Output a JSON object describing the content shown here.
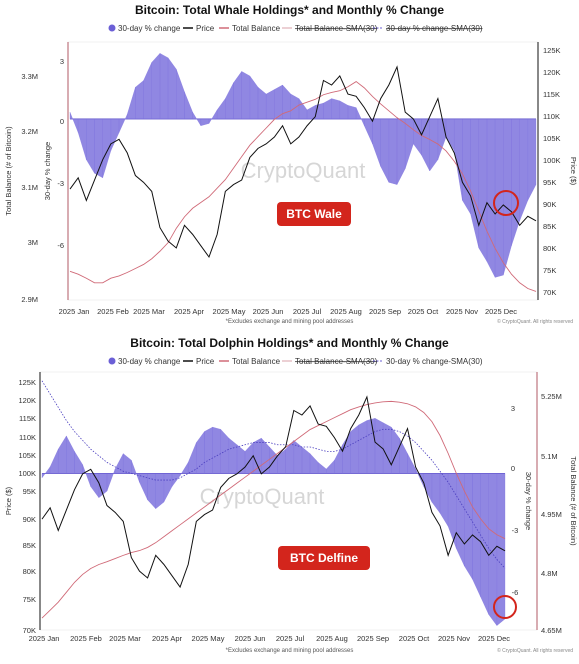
{
  "chart_data": [
    {
      "type": "area",
      "title": "Bitcoin: Total Whale Holdings* and Monthly % Change",
      "legend": [
        "30-day % change",
        "Price",
        "Total Balance",
        "Total Balance-SMA(30)",
        "30-day % change-SMA(30)"
      ],
      "legend_placement": "top",
      "ylabel_left": "Total Balance (# of Bitcoin)",
      "ylabel_mid": "30-day % change",
      "ylabel_right": "Price ($)",
      "left_ticks": [
        "3.3M",
        "3.2M",
        "3.1M",
        "3M",
        "2.9M"
      ],
      "mid_ticks": [
        "3",
        "0",
        "-3",
        "-6"
      ],
      "right_ticks": [
        "125K",
        "120K",
        "115K",
        "110K",
        "105K",
        "100K",
        "95K",
        "90K",
        "85K",
        "80K",
        "75K",
        "70K"
      ],
      "x_ticks": [
        "2025 Jan",
        "2025 Feb",
        "2025 Mar",
        "2025 Apr",
        "2025 May",
        "2025 Jun",
        "2025 Jul",
        "2025 Aug",
        "2025 Sep",
        "2025 Oct",
        "2025 Nov",
        "2025 Dec"
      ],
      "balance_range": [
        2900000,
        3350000
      ],
      "pct_range": [
        -8,
        3.4
      ],
      "price_range": [
        70000,
        127000
      ],
      "footnote": "*Excludes exchange and mining pool addresses",
      "copyright": "© CryptoQuant. All rights reserved",
      "watermark": "CryptoQuant",
      "annotation": "BTC Wale",
      "series": [
        {
          "name": "30-day % change",
          "values": [
            0.3,
            -0.6,
            -1.8,
            -2.4,
            -2.6,
            -1.4,
            -0.6,
            0.2,
            1.4,
            1.7,
            2.5,
            2.9,
            2.7,
            2.2,
            1.2,
            0.3,
            -0.3,
            -0.2,
            0.4,
            0.9,
            1.6,
            2.1,
            1.9,
            1.4,
            1.1,
            1.3,
            1.5,
            1.1,
            0.9,
            0.4,
            0.6,
            0.7,
            0.9,
            0.8,
            0.6,
            0.5,
            -0.3,
            -1.1,
            -2.1,
            -2.8,
            -2.9,
            -2.2,
            -1.1,
            -1.6,
            -2.3,
            -1.8,
            -0.8,
            -1.4,
            -3.6,
            -4.2,
            -5.7,
            -6.3,
            -7.0,
            -6.9,
            -5.6,
            -4.5,
            -3.6,
            -2.9
          ]
        },
        {
          "name": "Price",
          "values": [
            94500,
            97000,
            92000,
            96500,
            101000,
            104500,
            105500,
            102500,
            97500,
            96000,
            94000,
            86000,
            83000,
            81500,
            86500,
            84500,
            82000,
            79500,
            84500,
            94000,
            95500,
            96500,
            101500,
            103500,
            104500,
            106000,
            108500,
            104500,
            106000,
            108500,
            110500,
            118500,
            117500,
            119500,
            115500,
            115000,
            112500,
            109500,
            114500,
            117500,
            121500,
            111500,
            110000,
            106500,
            110500,
            114500,
            106000,
            102500,
            96000,
            93000,
            86500,
            91500,
            89000,
            91000,
            89500,
            86500,
            88500,
            87500
          ]
        },
        {
          "name": "Total Balance",
          "values": [
            2950000,
            2945000,
            2938000,
            2930000,
            2930000,
            2938000,
            2942000,
            2948000,
            2955000,
            2962000,
            2972000,
            2985000,
            3000000,
            3025000,
            3045000,
            3060000,
            3070000,
            3080000,
            3095000,
            3110000,
            3130000,
            3150000,
            3170000,
            3185000,
            3200000,
            3215000,
            3225000,
            3230000,
            3240000,
            3245000,
            3250000,
            3258000,
            3262000,
            3265000,
            3272000,
            3281000,
            3270000,
            3255000,
            3242000,
            3230000,
            3218000,
            3208000,
            3197000,
            3187000,
            3180000,
            3172000,
            3160000,
            3142000,
            3120000,
            3090000,
            3055000,
            3020000,
            2990000,
            2965000,
            2945000,
            2930000,
            2920000,
            2915000
          ]
        }
      ]
    },
    {
      "type": "area",
      "title": "Bitcoin: Total Dolphin Holdings* and Monthly % Change",
      "legend": [
        "30-day % change",
        "Price",
        "Total Balance",
        "Total Balance-SMA(30)",
        "30-day % change-SMA(30)"
      ],
      "legend_placement": "top",
      "ylabel_left": "Price ($)",
      "ylabel_mid": "30-day % change",
      "ylabel_right": "Total Balance (# of Bitcoin)",
      "left_ticks": [
        "125K",
        "120K",
        "115K",
        "110K",
        "105K",
        "100K",
        "95K",
        "90K",
        "85K",
        "80K",
        "75K",
        "70K"
      ],
      "mid_ticks": [
        "3",
        "0",
        "-3",
        "-6"
      ],
      "right_ticks": [
        "5.25M",
        "5.1M",
        "4.95M",
        "4.8M",
        "4.65M"
      ],
      "x_ticks": [
        "2025 Jan",
        "2025 Feb",
        "2025 Mar",
        "2025 Apr",
        "2025 May",
        "2025 Jun",
        "2025 Jul",
        "2025 Aug",
        "2025 Sep",
        "2025 Oct",
        "2025 Nov",
        "2025 Dec"
      ],
      "balance_range": [
        4650000,
        5300000
      ],
      "pct_range": [
        -7.1,
        4.6
      ],
      "price_range": [
        70000,
        127000
      ],
      "footnote": "*Excludes exchange and mining pool addresses",
      "copyright": "© CryptoQuant. All rights reserved",
      "watermark": "CryptoQuant",
      "annotation": "BTC Delfine",
      "series": [
        {
          "name": "30-day % change",
          "values": [
            -0.2,
            0.3,
            1.1,
            1.7,
            1.0,
            0.4,
            -0.6,
            -1.1,
            -0.8,
            0.2,
            0.9,
            0.6,
            -0.4,
            -1.2,
            -1.6,
            -1.3,
            -0.6,
            -0.1,
            0.5,
            1.4,
            1.9,
            2.1,
            2.0,
            1.6,
            1.3,
            1.0,
            1.4,
            1.6,
            1.2,
            0.8,
            1.1,
            1.5,
            1.2,
            0.9,
            0.5,
            0.2,
            0.6,
            1.3,
            1.9,
            2.2,
            2.4,
            2.5,
            2.3,
            2.1,
            1.6,
            0.9,
            0.2,
            -0.6,
            -1.3,
            -1.8,
            -2.4,
            -3.4,
            -4.2,
            -4.8,
            -5.6,
            -6.4,
            -6.9,
            -6.6
          ]
        },
        {
          "name": "Price",
          "values": [
            94500,
            97000,
            92000,
            96500,
            101000,
            104500,
            105500,
            102500,
            97500,
            96000,
            94000,
            86000,
            83000,
            81500,
            86500,
            84500,
            82000,
            79500,
            84500,
            94000,
            95500,
            96500,
            101500,
            103500,
            104500,
            106000,
            108500,
            104500,
            106000,
            108500,
            110500,
            118500,
            117500,
            119500,
            115500,
            115000,
            112500,
            109500,
            114500,
            117500,
            121500,
            111500,
            110000,
            106500,
            110500,
            114500,
            106000,
            102500,
            96000,
            93000,
            86500,
            91500,
            89000,
            91000,
            89500,
            86500,
            88500,
            87500
          ]
        },
        {
          "name": "Total Balance",
          "values": [
            4680000,
            4700000,
            4720000,
            4745000,
            4770000,
            4790000,
            4805000,
            4815000,
            4822000,
            4830000,
            4838000,
            4845000,
            4850000,
            4858000,
            4870000,
            4885000,
            4900000,
            4915000,
            4930000,
            4945000,
            4960000,
            4975000,
            4990000,
            5005000,
            5020000,
            5035000,
            5050000,
            5065000,
            5080000,
            5095000,
            5110000,
            5125000,
            5140000,
            5155000,
            5165000,
            5175000,
            5185000,
            5195000,
            5205000,
            5212000,
            5218000,
            5222000,
            5225000,
            5226000,
            5224000,
            5220000,
            5212000,
            5198000,
            5175000,
            5140000,
            5095000,
            5045000,
            5000000,
            4960000,
            4930000,
            4905000,
            4890000,
            4880000
          ]
        },
        {
          "name": "30-day % change-SMA(30)",
          "values": [
            4.2,
            3.6,
            3.0,
            2.4,
            1.9,
            1.5,
            1.1,
            0.8,
            0.5,
            0.3,
            0.1,
            0.0,
            -0.1,
            -0.2,
            -0.3,
            -0.3,
            -0.3,
            -0.2,
            0.0,
            0.2,
            0.5,
            0.7,
            0.9,
            1.1,
            1.2,
            1.3,
            1.4,
            1.4,
            1.4,
            1.3,
            1.3,
            1.3,
            1.2,
            1.2,
            1.1,
            1.0,
            1.0,
            1.1,
            1.3,
            1.5,
            1.7,
            1.9,
            2.0,
            2.0,
            1.9,
            1.7,
            1.4,
            1.0,
            0.6,
            0.1,
            -0.4,
            -1.0,
            -1.6,
            -2.2,
            -2.8,
            -3.4,
            -3.9,
            -4.3
          ]
        }
      ]
    }
  ]
}
